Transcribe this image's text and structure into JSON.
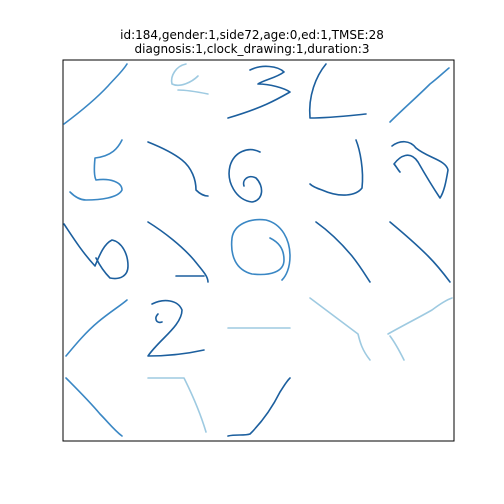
{
  "figure": {
    "title_line_1": "id:184,gender:1,side72,age:0,ed:1,TMSE:28",
    "title_line_2": "diagnosis:1,clock_drawing:1,duration:3"
  },
  "grid": {
    "rows": 5,
    "cols": 5
  },
  "colors": {
    "dark_stroke": "#1c5f9e",
    "mid_stroke": "#3a87c4",
    "light_stroke": "#9ecae1",
    "frame": "#000000"
  },
  "cells": [
    {
      "name": "cell-1-1-diagonal-stroke",
      "shade": "mid"
    },
    {
      "name": "cell-1-2-two-glyph",
      "shade": "light"
    },
    {
      "name": "cell-1-3-three-glyph",
      "shade": "dark"
    },
    {
      "name": "cell-1-4-hook-stroke",
      "shade": "dark"
    },
    {
      "name": "cell-1-5-diagonal-stroke",
      "shade": "mid"
    },
    {
      "name": "cell-2-1-five-glyph",
      "shade": "mid"
    },
    {
      "name": "cell-2-2-curve-stroke",
      "shade": "dark"
    },
    {
      "name": "cell-2-3-six-glyph",
      "shade": "dark"
    },
    {
      "name": "cell-2-4-hook-stroke",
      "shade": "dark"
    },
    {
      "name": "cell-2-5-loop-stroke",
      "shade": "dark"
    },
    {
      "name": "cell-3-1-loop-stroke",
      "shade": "dark"
    },
    {
      "name": "cell-3-2-curve-stroke",
      "shade": "dark"
    },
    {
      "name": "cell-3-3-spiral-stroke",
      "shade": "mid"
    },
    {
      "name": "cell-3-4-diagonal-stroke",
      "shade": "dark"
    },
    {
      "name": "cell-3-5-diagonal-stroke",
      "shade": "dark"
    },
    {
      "name": "cell-4-1-diagonal-stroke",
      "shade": "mid"
    },
    {
      "name": "cell-4-2-two-glyph",
      "shade": "dark"
    },
    {
      "name": "cell-4-3-horizontal-stroke",
      "shade": "light"
    },
    {
      "name": "cell-4-4-diagonal-stroke",
      "shade": "light"
    },
    {
      "name": "cell-4-5-diagonal-stroke",
      "shade": "light"
    },
    {
      "name": "cell-5-1-diagonal-stroke",
      "shade": "mid"
    },
    {
      "name": "cell-5-2-angle-stroke",
      "shade": "light"
    },
    {
      "name": "cell-5-3-diagonal-stroke",
      "shade": "dark"
    },
    {
      "name": "cell-5-4-empty",
      "shade": "none"
    },
    {
      "name": "cell-5-5-empty",
      "shade": "none"
    }
  ]
}
